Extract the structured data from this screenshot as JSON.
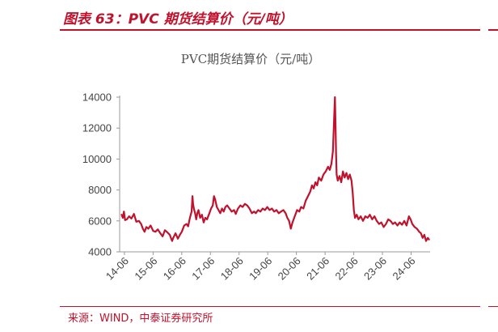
{
  "figure": {
    "title": "图表 63：PVC 期货结算价（元/吨）",
    "source": "来源：WIND，中泰证券研究所"
  },
  "chart_data": {
    "type": "line",
    "title": "PVC期货结算价（元/吨）",
    "xlabel": "",
    "ylabel": "",
    "x_start": "2014-04",
    "x_end": "2025-01",
    "ylim": [
      4000,
      14000
    ],
    "yticks": [
      4000,
      6000,
      8000,
      10000,
      12000,
      14000
    ],
    "xticks": [
      "14-06",
      "15-06",
      "16-06",
      "17-06",
      "18-06",
      "19-06",
      "20-06",
      "21-06",
      "22-06",
      "23-06",
      "24-06"
    ],
    "grid": false,
    "legend": "none",
    "line_color": "#c0122c",
    "series": [
      {
        "values": [
          [
            2014.32,
            6400
          ],
          [
            2014.36,
            6200
          ],
          [
            2014.4,
            6600
          ],
          [
            2014.44,
            6050
          ],
          [
            2014.5,
            6100
          ],
          [
            2014.58,
            6300
          ],
          [
            2014.66,
            6150
          ],
          [
            2014.75,
            6450
          ],
          [
            2014.83,
            5950
          ],
          [
            2014.92,
            6000
          ],
          [
            2015.0,
            5800
          ],
          [
            2015.06,
            5500
          ],
          [
            2015.12,
            5300
          ],
          [
            2015.18,
            5600
          ],
          [
            2015.25,
            5500
          ],
          [
            2015.33,
            5700
          ],
          [
            2015.42,
            5350
          ],
          [
            2015.5,
            5300
          ],
          [
            2015.58,
            5450
          ],
          [
            2015.67,
            5200
          ],
          [
            2015.75,
            5000
          ],
          [
            2015.83,
            5400
          ],
          [
            2015.92,
            5250
          ],
          [
            2016.0,
            5100
          ],
          [
            2016.08,
            4700
          ],
          [
            2016.12,
            4900
          ],
          [
            2016.2,
            5200
          ],
          [
            2016.28,
            4850
          ],
          [
            2016.35,
            5100
          ],
          [
            2016.42,
            5300
          ],
          [
            2016.5,
            5700
          ],
          [
            2016.58,
            5800
          ],
          [
            2016.64,
            5650
          ],
          [
            2016.7,
            6200
          ],
          [
            2016.76,
            6600
          ],
          [
            2016.79,
            7600
          ],
          [
            2016.81,
            7100
          ],
          [
            2016.84,
            6800
          ],
          [
            2016.88,
            6500
          ],
          [
            2016.92,
            6100
          ],
          [
            2016.96,
            6500
          ],
          [
            2017.0,
            6700
          ],
          [
            2017.06,
            6200
          ],
          [
            2017.12,
            6400
          ],
          [
            2017.18,
            5900
          ],
          [
            2017.24,
            6200
          ],
          [
            2017.3,
            6100
          ],
          [
            2017.38,
            6500
          ],
          [
            2017.44,
            6800
          ],
          [
            2017.5,
            7000
          ],
          [
            2017.54,
            7600
          ],
          [
            2017.58,
            7400
          ],
          [
            2017.64,
            6900
          ],
          [
            2017.7,
            6700
          ],
          [
            2017.76,
            6500
          ],
          [
            2017.82,
            6800
          ],
          [
            2017.88,
            6600
          ],
          [
            2017.94,
            6900
          ],
          [
            2018.0,
            7000
          ],
          [
            2018.08,
            6800
          ],
          [
            2018.16,
            6600
          ],
          [
            2018.24,
            6700
          ],
          [
            2018.3,
            6450
          ],
          [
            2018.38,
            6800
          ],
          [
            2018.46,
            7000
          ],
          [
            2018.54,
            6900
          ],
          [
            2018.62,
            7100
          ],
          [
            2018.7,
            7000
          ],
          [
            2018.78,
            6800
          ],
          [
            2018.86,
            6500
          ],
          [
            2018.94,
            6600
          ],
          [
            2019.0,
            6500
          ],
          [
            2019.08,
            6700
          ],
          [
            2019.16,
            6600
          ],
          [
            2019.24,
            6800
          ],
          [
            2019.32,
            6700
          ],
          [
            2019.4,
            6900
          ],
          [
            2019.48,
            6700
          ],
          [
            2019.56,
            6800
          ],
          [
            2019.64,
            6600
          ],
          [
            2019.72,
            6700
          ],
          [
            2019.8,
            6500
          ],
          [
            2019.88,
            6600
          ],
          [
            2019.96,
            6700
          ],
          [
            2020.04,
            6500
          ],
          [
            2020.1,
            6200
          ],
          [
            2020.16,
            6000
          ],
          [
            2020.22,
            5500
          ],
          [
            2020.28,
            5900
          ],
          [
            2020.36,
            6300
          ],
          [
            2020.44,
            6700
          ],
          [
            2020.52,
            6600
          ],
          [
            2020.58,
            6900
          ],
          [
            2020.66,
            6800
          ],
          [
            2020.74,
            7300
          ],
          [
            2020.82,
            7600
          ],
          [
            2020.9,
            7900
          ],
          [
            2020.96,
            8300
          ],
          [
            2021.02,
            8100
          ],
          [
            2021.08,
            8500
          ],
          [
            2021.14,
            8300
          ],
          [
            2021.2,
            8800
          ],
          [
            2021.28,
            8600
          ],
          [
            2021.36,
            9000
          ],
          [
            2021.44,
            9200
          ],
          [
            2021.52,
            9500
          ],
          [
            2021.58,
            9300
          ],
          [
            2021.64,
            9700
          ],
          [
            2021.69,
            10500
          ],
          [
            2021.73,
            12500
          ],
          [
            2021.76,
            14000
          ],
          [
            2021.78,
            12300
          ],
          [
            2021.8,
            10300
          ],
          [
            2021.82,
            9000
          ],
          [
            2021.86,
            8600
          ],
          [
            2021.92,
            8900
          ],
          [
            2021.98,
            8500
          ],
          [
            2022.04,
            9200
          ],
          [
            2022.1,
            8800
          ],
          [
            2022.16,
            9100
          ],
          [
            2022.22,
            8700
          ],
          [
            2022.28,
            9000
          ],
          [
            2022.34,
            8600
          ],
          [
            2022.38,
            7800
          ],
          [
            2022.42,
            6700
          ],
          [
            2022.46,
            6200
          ],
          [
            2022.52,
            6400
          ],
          [
            2022.58,
            6100
          ],
          [
            2022.66,
            6300
          ],
          [
            2022.74,
            6000
          ],
          [
            2022.82,
            6300
          ],
          [
            2022.9,
            6200
          ],
          [
            2022.98,
            6400
          ],
          [
            2023.06,
            6100
          ],
          [
            2023.14,
            6300
          ],
          [
            2023.22,
            6000
          ],
          [
            2023.3,
            5800
          ],
          [
            2023.38,
            5900
          ],
          [
            2023.46,
            5600
          ],
          [
            2023.54,
            5800
          ],
          [
            2023.62,
            6100
          ],
          [
            2023.7,
            6000
          ],
          [
            2023.78,
            5800
          ],
          [
            2023.86,
            5900
          ],
          [
            2023.94,
            5700
          ],
          [
            2024.02,
            5900
          ],
          [
            2024.1,
            5750
          ],
          [
            2024.18,
            6000
          ],
          [
            2024.26,
            5700
          ],
          [
            2024.34,
            6300
          ],
          [
            2024.4,
            6100
          ],
          [
            2024.46,
            5800
          ],
          [
            2024.54,
            5600
          ],
          [
            2024.62,
            5500
          ],
          [
            2024.7,
            5300
          ],
          [
            2024.76,
            5200
          ],
          [
            2024.82,
            4900
          ],
          [
            2024.88,
            5100
          ],
          [
            2024.94,
            4700
          ],
          [
            2025.0,
            4900
          ],
          [
            2025.04,
            4800
          ]
        ]
      }
    ]
  }
}
